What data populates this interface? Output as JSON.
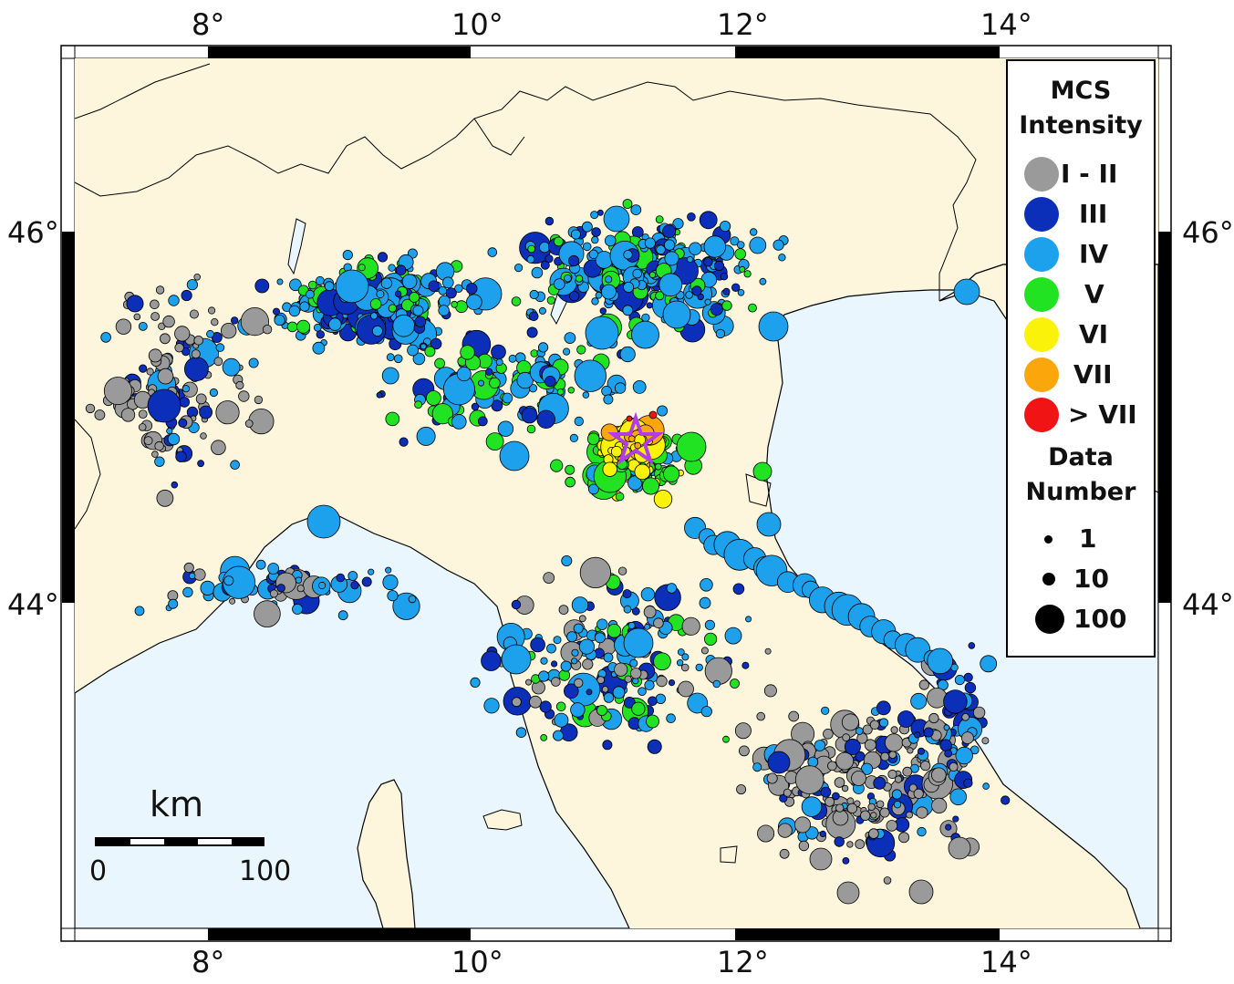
{
  "map": {
    "colors": {
      "land": "#fdf6dc",
      "sea": "#eaf6fd",
      "border": "#000000",
      "I-II": "#9a9a9a",
      "III": "#0b2fb8",
      "IV": "#1ea1ec",
      "V": "#22e322",
      "VI": "#fbf20a",
      "VII": "#fba70b",
      "gt7": "#f01414",
      "epicenter": "#b23ce8"
    },
    "lon_ticks": [
      "8°",
      "10°",
      "12°",
      "14°"
    ],
    "lat_ticks": [
      "46°",
      "44°"
    ],
    "epicenter_icon": "star-icon"
  },
  "legend": {
    "title_line1": "MCS",
    "title_line2": "Intensity",
    "intensity_items": [
      {
        "label": "I - II",
        "color": "#9a9a9a"
      },
      {
        "label": "III",
        "color": "#0b2fb8"
      },
      {
        "label": "IV",
        "color": "#1ea1ec"
      },
      {
        "label": "V",
        "color": "#22e322"
      },
      {
        "label": "VI",
        "color": "#fbf20a"
      },
      {
        "label": "VII",
        "color": "#fba70b"
      },
      {
        "label": "> VII",
        "color": "#f01414"
      }
    ],
    "size_title_line1": "Data",
    "size_title_line2": "Number",
    "size_items": [
      {
        "label": "1",
        "value": 1
      },
      {
        "label": "10",
        "value": 10
      },
      {
        "label": "100",
        "value": 100
      }
    ]
  },
  "scale_bar": {
    "unit": "km",
    "min_label": "0",
    "max_label": "100"
  }
}
